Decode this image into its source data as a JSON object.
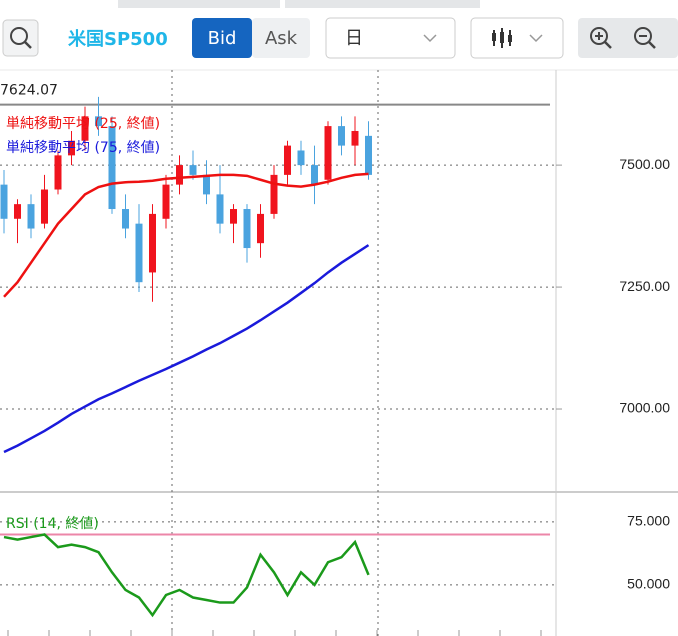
{
  "toolbar": {
    "title": "米国SP500",
    "bid": "Bid",
    "ask": "Ask",
    "period": "日"
  },
  "chart_data": {
    "type": "candlestick",
    "price_label": "7624.07",
    "price_line": 7624.07,
    "ylim": [
      6834,
      7695
    ],
    "yticks": [
      {
        "value": 7500,
        "label": "7500.00"
      },
      {
        "value": 7250,
        "label": "7250.00"
      },
      {
        "value": 7000,
        "label": "7000.00"
      }
    ],
    "up_color": "#f0141e",
    "down_color": "#4aa3df",
    "open": [
      7460,
      7390,
      7420,
      7380,
      7450,
      7520,
      7550,
      7600,
      7580,
      7410,
      7380,
      7280,
      7390,
      7460,
      7500,
      7480,
      7440,
      7380,
      7410,
      7340,
      7400,
      7480,
      7530,
      7500,
      7470,
      7580,
      7540,
      7560
    ],
    "high": [
      7490,
      7430,
      7440,
      7480,
      7530,
      7570,
      7620,
      7640,
      7600,
      7440,
      7420,
      7420,
      7480,
      7520,
      7530,
      7510,
      7500,
      7420,
      7420,
      7420,
      7500,
      7550,
      7550,
      7540,
      7590,
      7600,
      7600,
      7590
    ],
    "low": [
      7360,
      7340,
      7350,
      7370,
      7440,
      7500,
      7530,
      7560,
      7400,
      7350,
      7240,
      7220,
      7370,
      7440,
      7470,
      7420,
      7360,
      7340,
      7300,
      7310,
      7390,
      7460,
      7480,
      7420,
      7460,
      7520,
      7500,
      7470
    ],
    "close": [
      7390,
      7420,
      7370,
      7450,
      7520,
      7550,
      7600,
      7580,
      7410,
      7370,
      7260,
      7400,
      7460,
      7500,
      7480,
      7440,
      7380,
      7410,
      7330,
      7400,
      7480,
      7540,
      7500,
      7460,
      7580,
      7540,
      7570,
      7480
    ],
    "series": [
      {
        "name": "単純移動平均 (25, 終値)",
        "color": "#ee1111",
        "values": [
          7230,
          7260,
          7300,
          7340,
          7380,
          7410,
          7440,
          7455,
          7462,
          7465,
          7466,
          7468,
          7472,
          7474,
          7476,
          7478,
          7480,
          7480,
          7478,
          7470,
          7462,
          7458,
          7456,
          7460,
          7466,
          7474,
          7480,
          7482
        ]
      },
      {
        "name": "単純移動平均 (75, 終値)",
        "color": "#1a1adb",
        "values": [
          6912,
          6925,
          6940,
          6955,
          6972,
          6990,
          7005,
          7020,
          7032,
          7045,
          7058,
          7070,
          7082,
          7095,
          7108,
          7122,
          7135,
          7150,
          7165,
          7182,
          7200,
          7218,
          7238,
          7258,
          7280,
          7300,
          7318,
          7336
        ]
      }
    ],
    "rsi": {
      "name": "RSI (14, 終値)",
      "color": "#1b9a1b",
      "overbought": 70,
      "overbought_color": "#ec86a8",
      "ylim": [
        32.9,
        84.5
      ],
      "yticks": [
        {
          "value": 75,
          "label": "75.000"
        },
        {
          "value": 50,
          "label": "50.000"
        }
      ],
      "values": [
        69,
        68,
        69,
        70,
        65,
        66,
        65,
        63,
        55,
        48,
        45,
        38,
        46,
        48,
        45,
        44,
        43,
        43,
        49,
        62,
        55,
        46,
        55,
        50,
        59,
        61,
        67,
        54
      ]
    }
  }
}
